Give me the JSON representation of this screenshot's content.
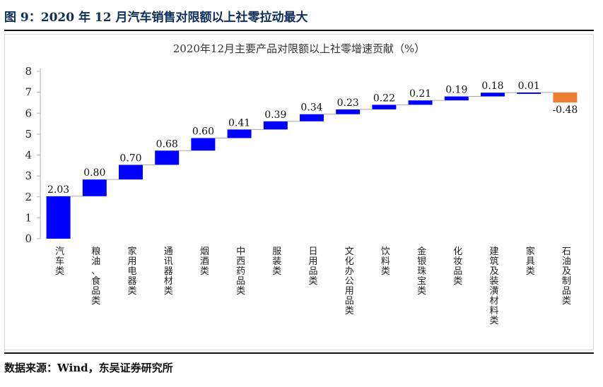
{
  "figure": {
    "title": "图 9：2020 年 12 月汽车销售对限额以上社零拉动最大",
    "source": "数据来源：Wind，东吴证券研究所"
  },
  "colors": {
    "positive": "#0000ff",
    "negative": "#ed7d31",
    "connector": "#a6a6a6"
  },
  "chart_data": {
    "type": "bar",
    "subtype": "waterfall",
    "title": "2020年12月主要产品对限额以上社零增速贡献（%）",
    "xlabel": "",
    "ylabel": "",
    "ylim": [
      0,
      8
    ],
    "yticks": [
      0,
      1,
      2,
      3,
      4,
      5,
      6,
      7,
      8
    ],
    "grid": false,
    "legend": "none",
    "categories": [
      "汽车类",
      "粮油、食品类",
      "家用电器类",
      "通讯器材类",
      "烟酒类",
      "中西药品类",
      "服装类",
      "日用品类",
      "文化办公用品类",
      "饮料类",
      "金银珠宝类",
      "化妆品类",
      "建筑及装潢材料类",
      "家具类",
      "石油及制品类"
    ],
    "values": [
      2.03,
      0.8,
      0.7,
      0.68,
      0.6,
      0.41,
      0.39,
      0.34,
      0.23,
      0.22,
      0.21,
      0.19,
      0.18,
      0.01,
      -0.48
    ],
    "labels": [
      "2.03",
      "0.80",
      "0.70",
      "0.68",
      "0.60",
      "0.41",
      "0.39",
      "0.34",
      "0.23",
      "0.22",
      "0.21",
      "0.19",
      "0.18",
      "0.01",
      "-0.48"
    ]
  }
}
